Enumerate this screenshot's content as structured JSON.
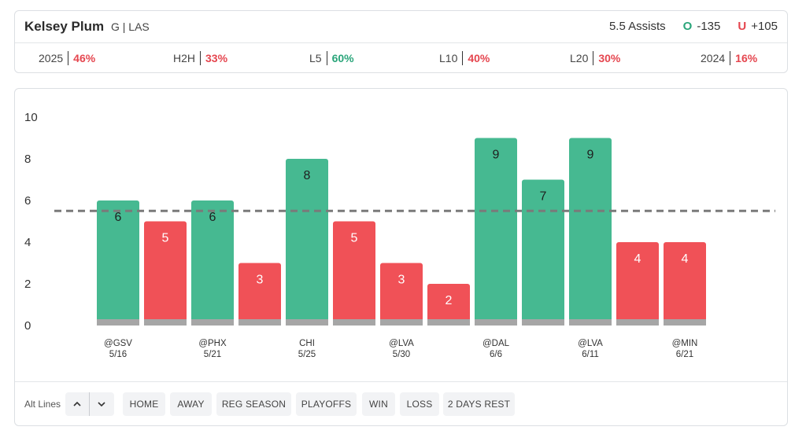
{
  "header": {
    "player_name": "Kelsey Plum",
    "player_meta": "G | LAS",
    "prop_label": "5.5 Assists",
    "over_symbol": "O",
    "over_odds": "-135",
    "under_symbol": "U",
    "under_odds": "+105",
    "stats": [
      {
        "label": "2025",
        "value": "46%",
        "status": "red"
      },
      {
        "label": "H2H",
        "value": "33%",
        "status": "red"
      },
      {
        "label": "L5",
        "value": "60%",
        "status": "green"
      },
      {
        "label": "L10",
        "value": "40%",
        "status": "red"
      },
      {
        "label": "L20",
        "value": "30%",
        "status": "red"
      },
      {
        "label": "2024",
        "value": "16%",
        "status": "red"
      }
    ]
  },
  "colors": {
    "over": "#46b991",
    "under": "#f05157",
    "baseline": "#a6a6a6",
    "line": "#7a7a7a"
  },
  "chart_data": {
    "type": "bar",
    "prop_line": 5.5,
    "ylim": [
      0,
      10
    ],
    "yticks": [
      0,
      2,
      4,
      6,
      8,
      10
    ],
    "grid": false,
    "values": [
      6,
      5,
      6,
      3,
      8,
      5,
      3,
      2,
      9,
      7,
      9,
      4,
      4
    ],
    "outcomes": [
      "over",
      "under",
      "over",
      "under",
      "over",
      "under",
      "under",
      "under",
      "over",
      "over",
      "over",
      "under",
      "under"
    ],
    "x_labels": [
      {
        "opponent": "@GSV",
        "date": "5/16"
      },
      {
        "opponent": "",
        "date": ""
      },
      {
        "opponent": "@PHX",
        "date": "5/21"
      },
      {
        "opponent": "",
        "date": ""
      },
      {
        "opponent": "CHI",
        "date": "5/25"
      },
      {
        "opponent": "",
        "date": ""
      },
      {
        "opponent": "@LVA",
        "date": "5/30"
      },
      {
        "opponent": "",
        "date": ""
      },
      {
        "opponent": "@DAL",
        "date": "6/6"
      },
      {
        "opponent": "",
        "date": ""
      },
      {
        "opponent": "@LVA",
        "date": "6/11"
      },
      {
        "opponent": "",
        "date": ""
      },
      {
        "opponent": "@MIN",
        "date": "6/21"
      }
    ]
  },
  "filters": {
    "alt_lines_label": "Alt Lines",
    "up_icon": "chevron-up-icon",
    "down_icon": "chevron-down-icon",
    "buttons": [
      "HOME",
      "AWAY",
      "REG SEASON",
      "PLAYOFFS",
      "WIN",
      "LOSS",
      "2 DAYS REST"
    ]
  }
}
